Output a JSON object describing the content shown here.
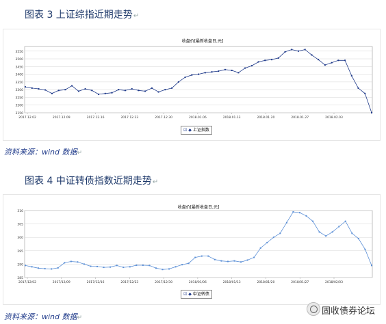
{
  "figure1": {
    "caption": "图表 3   上证综指近期走势",
    "chart_title": "收盘价[最新收盘日,元]",
    "legend": "上证指数",
    "source": "资料来源：wind 数据"
  },
  "figure2": {
    "caption": "图表 4   中证转债指数近期走势",
    "chart_title": "收盘价[最新收盘日,元]",
    "legend": "中证转债",
    "source": "资料来源：wind 数据"
  },
  "watermark": "固收债券论坛",
  "chart_data": [
    {
      "type": "line",
      "title": "收盘价[最新收盘日,元]",
      "legend_position": "bottom",
      "grid": true,
      "ylim": [
        3150,
        3580
      ],
      "yticks": [
        3150,
        3200,
        3250,
        3300,
        3350,
        3400,
        3450,
        3500,
        3550
      ],
      "xtick_labels": [
        "2017.12.02",
        "2017.12.09",
        "2017.12.16",
        "2017.12.23",
        "2017.12.30",
        "2018.01.06",
        "2018.01.13",
        "2018.01.20",
        "2018.01.27",
        "2018.02.03"
      ],
      "series": [
        {
          "name": "上证指数",
          "color": "#1f3a8a",
          "values": [
            3318,
            3310,
            3305,
            3298,
            3275,
            3295,
            3300,
            3325,
            3290,
            3305,
            3295,
            3270,
            3275,
            3280,
            3300,
            3295,
            3305,
            3295,
            3290,
            3310,
            3285,
            3300,
            3310,
            3350,
            3380,
            3395,
            3400,
            3410,
            3415,
            3420,
            3430,
            3425,
            3410,
            3440,
            3455,
            3480,
            3490,
            3495,
            3505,
            3545,
            3560,
            3550,
            3560,
            3525,
            3495,
            3460,
            3475,
            3490,
            3490,
            3390,
            3310,
            3275,
            3150
          ]
        }
      ]
    },
    {
      "type": "line",
      "title": "收盘价[最新收盘日,元]",
      "legend_position": "bottom",
      "grid": true,
      "ylim": [
        285,
        310
      ],
      "yticks": [
        285,
        290,
        295,
        300,
        305,
        310
      ],
      "xtick_labels": [
        "2017/12/02",
        "2017/12/09",
        "2017/12/16",
        "2017/12/23",
        "2017/12/30",
        "2018/01/06",
        "2018/01/13",
        "2018/01/20",
        "2018/01/27",
        "2018/02/03"
      ],
      "series": [
        {
          "name": "中证转债",
          "color": "#5b8fd6",
          "values": [
            289.5,
            289,
            288.5,
            288.3,
            288.2,
            288.6,
            290.5,
            291,
            290.8,
            290,
            289.2,
            289.1,
            288.8,
            288.9,
            289.5,
            288.8,
            289,
            289.6,
            289.6,
            289.5,
            288.5,
            288,
            288.2,
            289,
            289.8,
            290.3,
            292.5,
            293,
            293,
            291.7,
            291.2,
            291,
            291.2,
            290.8,
            291.5,
            292.5,
            296,
            298,
            300,
            301.5,
            305.5,
            309.5,
            309.2,
            308,
            306,
            302,
            300.5,
            302,
            304,
            306,
            301.5,
            299.5,
            295.5,
            289.5
          ]
        }
      ]
    }
  ]
}
